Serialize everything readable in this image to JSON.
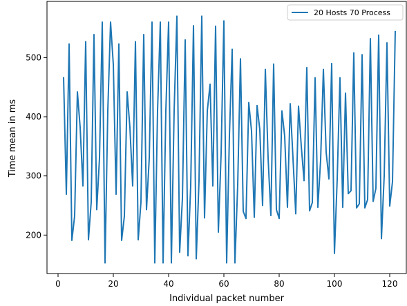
{
  "chart_data": {
    "type": "line",
    "xlabel": "Individual packet number",
    "ylabel": "Time mean in ms",
    "xlim": [
      -4,
      126
    ],
    "ylim": [
      135,
      595
    ],
    "xticks": [
      0,
      20,
      40,
      60,
      80,
      100,
      120
    ],
    "yticks": [
      200,
      300,
      400,
      500
    ],
    "grid": false,
    "legend_position": "top-right",
    "series": [
      {
        "name": "20 Hosts 70 Process",
        "color": "#1f77b4",
        "x": [
          2,
          3,
          4,
          5,
          6,
          7,
          8,
          9,
          10,
          11,
          12,
          13,
          14,
          15,
          16,
          17,
          18,
          19,
          20,
          21,
          22,
          23,
          24,
          25,
          26,
          27,
          28,
          29,
          30,
          31,
          32,
          33,
          34,
          35,
          36,
          37,
          38,
          39,
          40,
          41,
          42,
          43,
          44,
          45,
          46,
          47,
          48,
          49,
          50,
          51,
          52,
          53,
          54,
          55,
          56,
          57,
          58,
          59,
          60,
          61,
          62,
          63,
          64,
          65,
          66,
          67,
          68,
          69,
          70,
          71,
          72,
          73,
          74,
          75,
          76,
          77,
          78,
          79,
          80,
          81,
          82,
          83,
          84,
          85,
          86,
          87,
          88,
          89,
          90,
          91,
          92,
          93,
          94,
          95,
          96,
          97,
          98,
          99,
          100,
          101,
          102,
          103,
          104,
          105,
          106,
          107,
          108,
          109,
          110,
          111,
          112,
          113,
          114,
          115,
          116,
          117,
          118,
          119,
          120,
          121,
          122
        ],
        "values": [
          467,
          269,
          523,
          191,
          232,
          442,
          382,
          283,
          527,
          192,
          256,
          539,
          243,
          330,
          560,
          153,
          410,
          560,
          488,
          269,
          523,
          191,
          232,
          442,
          382,
          283,
          527,
          192,
          256,
          539,
          243,
          330,
          560,
          153,
          410,
          560,
          153,
          410,
          560,
          153,
          410,
          570,
          171,
          262,
          530,
          165,
          284,
          554,
          160,
          292,
          570,
          229,
          410,
          455,
          283,
          553,
          205,
          338,
          562,
          153,
          368,
          514,
          153,
          285,
          498,
          240,
          228,
          424,
          376,
          230,
          419,
          378,
          250,
          480,
          330,
          233,
          489,
          243,
          228,
          410,
          367,
          247,
          422,
          330,
          236,
          418,
          350,
          292,
          483,
          241,
          255,
          466,
          247,
          327,
          480,
          340,
          295,
          490,
          169,
          295,
          466,
          247,
          440,
          270,
          275,
          508,
          246,
          253,
          505,
          246,
          260,
          532,
          257,
          279,
          538,
          194,
          300,
          525,
          249,
          290,
          545
        ]
      }
    ]
  }
}
